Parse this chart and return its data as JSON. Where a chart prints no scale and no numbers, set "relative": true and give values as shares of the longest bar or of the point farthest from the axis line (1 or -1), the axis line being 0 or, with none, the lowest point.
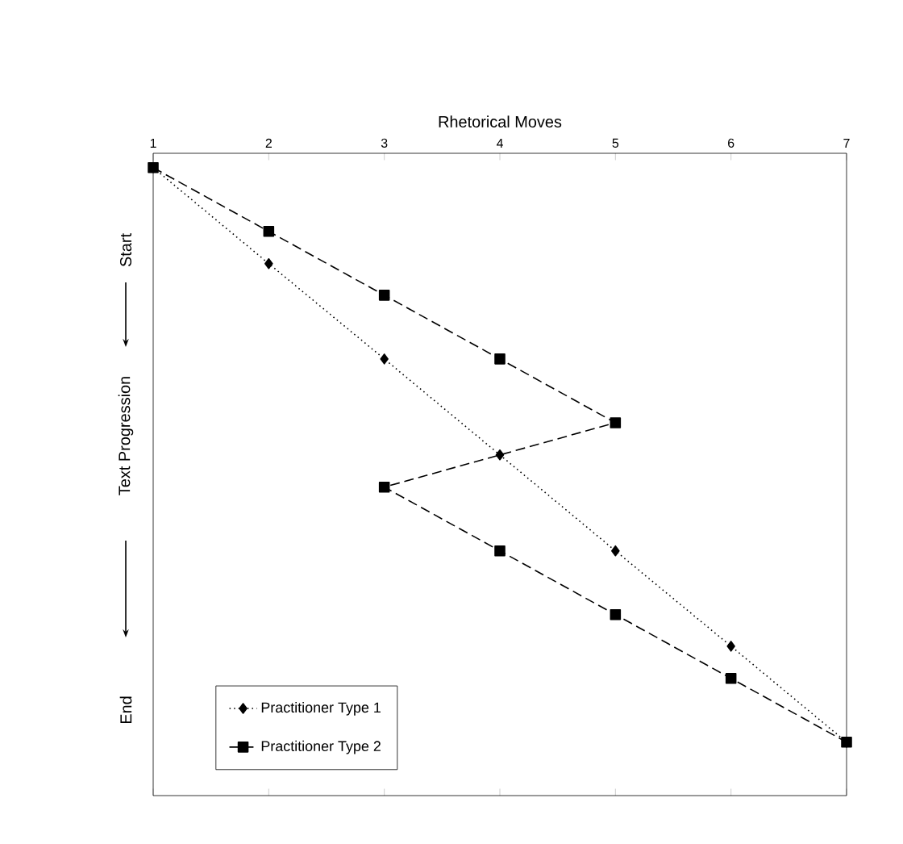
{
  "chart_data": {
    "type": "line",
    "xlabel": "Rhetorical Moves",
    "ylabel": "Text Progression",
    "relative": true,
    "annotations": [
      "Start",
      "End"
    ],
    "xlim": [
      1,
      7
    ],
    "xticks": [
      1,
      2,
      3,
      4,
      5,
      6,
      7
    ],
    "legend": "bottom left",
    "tick_labels": "x",
    "series": [
      {
        "name": "Practitioner Type 1",
        "color": "#000000",
        "marker": "diamond",
        "line_style": "dotted",
        "x": [
          1,
          2,
          3,
          4,
          5,
          6,
          7
        ],
        "values": [
          1,
          0.833,
          0.667,
          0.5,
          0.333,
          0.167,
          0
        ]
      },
      {
        "name": "Practitioner Type 2",
        "color": "#000000",
        "marker": "square",
        "line_style": "dashed",
        "x": [
          1,
          2,
          3,
          4,
          5,
          3,
          4,
          5,
          6,
          7
        ],
        "values": [
          1,
          0.889,
          0.778,
          0.667,
          0.556,
          0.444,
          0.333,
          0.222,
          0.111,
          0
        ]
      }
    ]
  }
}
